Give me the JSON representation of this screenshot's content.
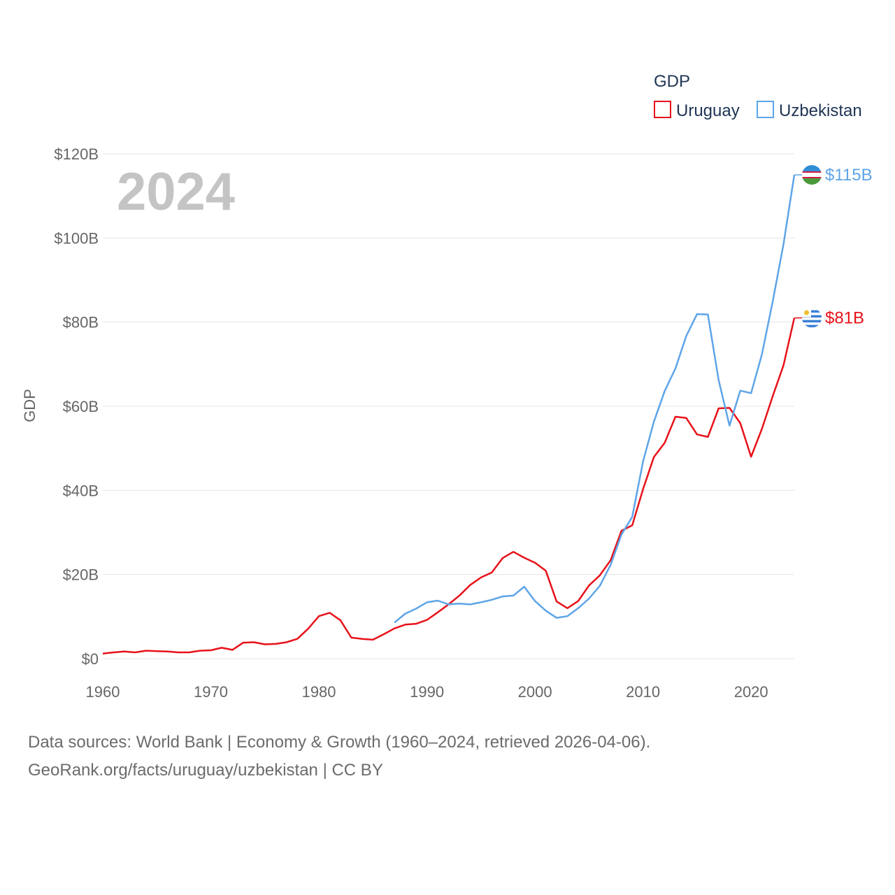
{
  "chart_data": {
    "type": "line",
    "title": "",
    "ylabel": "GDP",
    "xlabel": "",
    "year_label": "2024",
    "legend": {
      "title": "GDP",
      "position": "top-right"
    },
    "xlim": [
      1960,
      2024
    ],
    "ylim": [
      0,
      120
    ],
    "x_ticks": [
      "1960",
      "1970",
      "1980",
      "1990",
      "2000",
      "2010",
      "2020"
    ],
    "y_ticks": [
      {
        "value": 0,
        "label": "$0"
      },
      {
        "value": 20,
        "label": "$20B"
      },
      {
        "value": 40,
        "label": "$40B"
      },
      {
        "value": 60,
        "label": "$60B"
      },
      {
        "value": 80,
        "label": "$80B"
      },
      {
        "value": 100,
        "label": "$100B"
      },
      {
        "value": 120,
        "label": "$120B"
      }
    ],
    "series": [
      {
        "name": "Uruguay",
        "color": "#e8121a",
        "end_label": "$81B",
        "flag": "uruguay-flag-icon",
        "x": [
          1960,
          1961,
          1962,
          1963,
          1964,
          1965,
          1966,
          1967,
          1968,
          1969,
          1970,
          1971,
          1972,
          1973,
          1974,
          1975,
          1976,
          1977,
          1978,
          1979,
          1980,
          1981,
          1982,
          1983,
          1984,
          1985,
          1986,
          1987,
          1988,
          1989,
          1990,
          1991,
          1992,
          1993,
          1994,
          1995,
          1996,
          1997,
          1998,
          1999,
          2000,
          2001,
          2002,
          2003,
          2004,
          2005,
          2006,
          2007,
          2008,
          2009,
          2010,
          2011,
          2012,
          2013,
          2014,
          2015,
          2016,
          2017,
          2018,
          2019,
          2020,
          2021,
          2022,
          2023,
          2024
        ],
        "values": [
          1.2,
          1.5,
          1.7,
          1.5,
          1.9,
          1.8,
          1.7,
          1.5,
          1.5,
          1.9,
          2.0,
          2.6,
          2.1,
          3.8,
          3.9,
          3.4,
          3.5,
          3.9,
          4.7,
          7.1,
          10.1,
          10.9,
          9.1,
          5.0,
          4.7,
          4.5,
          5.8,
          7.2,
          8.1,
          8.3,
          9.2,
          11.0,
          12.9,
          15.0,
          17.5,
          19.3,
          20.5,
          23.9,
          25.4,
          24.0,
          22.8,
          20.9,
          13.6,
          12.0,
          13.7,
          17.4,
          19.8,
          23.4,
          30.4,
          31.7,
          40.3,
          47.9,
          51.3,
          57.5,
          57.2,
          53.3,
          52.7,
          59.5,
          59.6,
          56.0,
          48.0,
          54.6,
          62.4,
          69.7,
          81.0
        ]
      },
      {
        "name": "Uzbekistan",
        "color": "#5ea5e8",
        "end_label": "$115B",
        "flag": "uzbekistan-flag-icon",
        "x": [
          1987,
          1988,
          1989,
          1990,
          1991,
          1992,
          1993,
          1994,
          1995,
          1996,
          1997,
          1998,
          1999,
          2000,
          2001,
          2002,
          2003,
          2004,
          2005,
          2006,
          2007,
          2008,
          2009,
          2010,
          2011,
          2012,
          2013,
          2014,
          2015,
          2016,
          2017,
          2018,
          2019,
          2020,
          2021,
          2022,
          2023,
          2024
        ],
        "values": [
          8.6,
          10.7,
          11.9,
          13.4,
          13.8,
          12.9,
          13.1,
          12.9,
          13.4,
          14.0,
          14.8,
          15.0,
          17.1,
          13.7,
          11.4,
          9.7,
          10.1,
          12.0,
          14.3,
          17.3,
          22.3,
          29.5,
          33.7,
          46.9,
          56.3,
          63.6,
          69.0,
          76.7,
          81.9,
          81.8,
          66.2,
          55.4,
          63.7,
          63.1,
          72.3,
          84.9,
          98.5,
          115.0
        ]
      }
    ]
  },
  "footer": {
    "line1": "Data sources: World Bank | Economy & Growth (1960–2024, retrieved 2026-04-06).",
    "line2": "GeoRank.org/facts/uruguay/uzbekistan | CC BY"
  }
}
